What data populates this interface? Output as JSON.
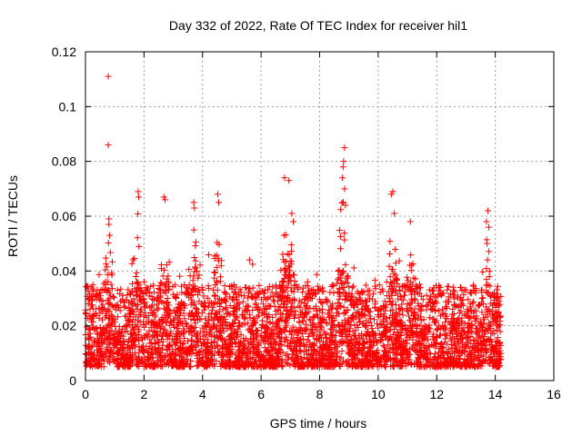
{
  "chart_data": {
    "type": "scatter",
    "title": "Day 332 of 2022, Rate Of TEC Index for receiver hil1",
    "xlabel": "GPS time / hours",
    "ylabel": "ROTI / TECUs",
    "xlim": [
      0,
      16
    ],
    "ylim": [
      0,
      0.12
    ],
    "xticks": [
      0,
      2,
      4,
      6,
      8,
      10,
      12,
      14,
      16
    ],
    "yticks": [
      0,
      0.02,
      0.04,
      0.06,
      0.08,
      0.1,
      0.12
    ],
    "xtick_labels": [
      "0",
      "2",
      "4",
      "6",
      "8",
      "10",
      "12",
      "14",
      "16"
    ],
    "ytick_labels": [
      "0",
      "0.02",
      "0.04",
      "0.06",
      "0.08",
      "0.1",
      "0.12"
    ],
    "grid": true,
    "marker": "+",
    "color": "#ff0000",
    "series": [
      {
        "name": "ROTI",
        "time_range_hours": [
          0,
          14.2
        ],
        "typical_range": [
          0.005,
          0.035
        ],
        "notable_points": [
          {
            "x": 0.78,
            "y": 0.111
          },
          {
            "x": 0.78,
            "y": 0.086
          },
          {
            "x": 0.8,
            "y": 0.059
          },
          {
            "x": 0.8,
            "y": 0.057
          },
          {
            "x": 1.8,
            "y": 0.069
          },
          {
            "x": 1.82,
            "y": 0.067
          },
          {
            "x": 2.68,
            "y": 0.067
          },
          {
            "x": 2.72,
            "y": 0.066
          },
          {
            "x": 3.7,
            "y": 0.065
          },
          {
            "x": 3.72,
            "y": 0.063
          },
          {
            "x": 4.52,
            "y": 0.068
          },
          {
            "x": 4.55,
            "y": 0.065
          },
          {
            "x": 6.8,
            "y": 0.074
          },
          {
            "x": 6.95,
            "y": 0.073
          },
          {
            "x": 7.05,
            "y": 0.061
          },
          {
            "x": 7.1,
            "y": 0.058
          },
          {
            "x": 8.85,
            "y": 0.085
          },
          {
            "x": 8.82,
            "y": 0.08
          },
          {
            "x": 8.8,
            "y": 0.078
          },
          {
            "x": 8.78,
            "y": 0.074
          },
          {
            "x": 8.85,
            "y": 0.07
          },
          {
            "x": 8.8,
            "y": 0.065
          },
          {
            "x": 8.88,
            "y": 0.064
          },
          {
            "x": 10.5,
            "y": 0.069
          },
          {
            "x": 10.45,
            "y": 0.068
          },
          {
            "x": 10.55,
            "y": 0.061
          },
          {
            "x": 11.1,
            "y": 0.058
          },
          {
            "x": 13.75,
            "y": 0.062
          },
          {
            "x": 13.7,
            "y": 0.058
          },
          {
            "x": 13.78,
            "y": 0.056
          },
          {
            "x": 13.72,
            "y": 0.05
          }
        ],
        "activity_bursts": [
          {
            "x": 0.8,
            "peak": 0.06
          },
          {
            "x": 1.8,
            "peak": 0.069
          },
          {
            "x": 2.7,
            "peak": 0.067
          },
          {
            "x": 3.7,
            "peak": 0.065
          },
          {
            "x": 4.5,
            "peak": 0.068
          },
          {
            "x": 6.8,
            "peak": 0.074
          },
          {
            "x": 7.0,
            "peak": 0.073
          },
          {
            "x": 8.8,
            "peak": 0.085
          },
          {
            "x": 10.5,
            "peak": 0.069
          },
          {
            "x": 11.1,
            "peak": 0.058
          },
          {
            "x": 13.75,
            "peak": 0.062
          }
        ]
      }
    ]
  }
}
